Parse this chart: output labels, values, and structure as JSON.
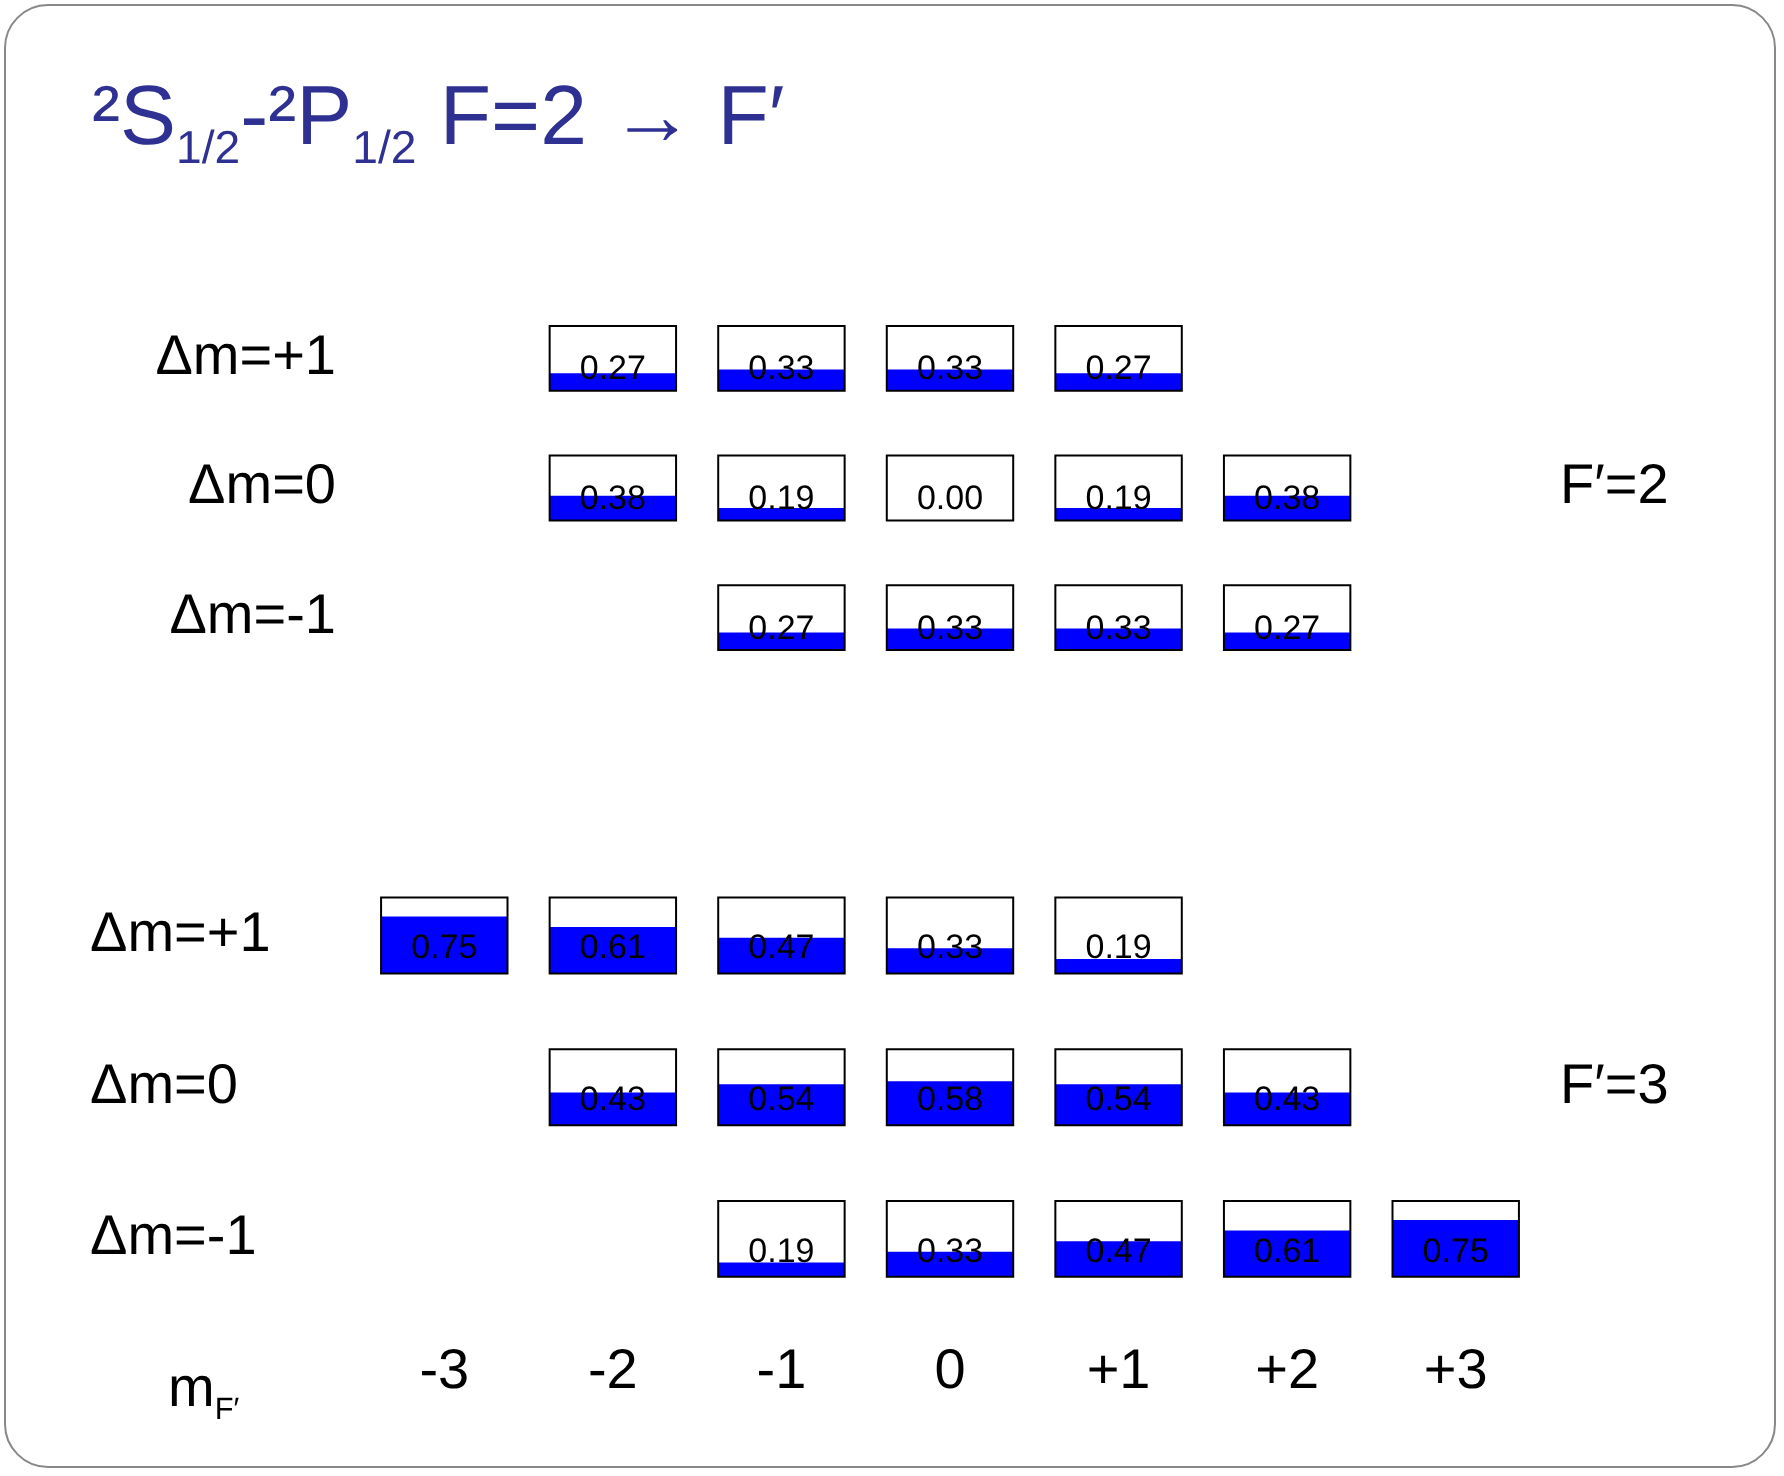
{
  "chart_data": [
    {
      "type": "heatmap",
      "title": "²S$_{1/2}$-²P$_{1/2}$  F=2 → F′",
      "color": "#0000ff",
      "tick_labels": "y",
      "categories": [
        "-3",
        "-2",
        "-1",
        "0",
        "+1",
        "+2",
        "+3"
      ],
      "y_categories": [
        "Δm=+1",
        "Δm=0",
        "Δm=-1"
      ],
      "y2_categories": [
        null,
        "F′=2",
        null
      ],
      "cells": [
        [
          null,
          0.27,
          0.33,
          0.33,
          0.27,
          null,
          null
        ],
        [
          null,
          0.38,
          0.19,
          0,
          0.19,
          0.38,
          null
        ],
        [
          null,
          null,
          0.27,
          0.33,
          0.33,
          0.27,
          null
        ]
      ],
      "cell_labels": [
        [
          null,
          "0.27",
          "0.33",
          "0.33",
          "0.27",
          null,
          null
        ],
        [
          null,
          "0.38",
          "0.19",
          "0.00",
          "0.19",
          "0.38",
          null
        ],
        [
          null,
          null,
          "0.27",
          "0.33",
          "0.33",
          "0.27",
          null
        ]
      ]
    },
    {
      "type": "heatmap",
      "xlabel": "m$_{F′}$",
      "color": "#0000ff",
      "categories": [
        "-3",
        "-2",
        "-1",
        "0",
        "+1",
        "+2",
        "+3"
      ],
      "y_categories": [
        "Δm=+1",
        "Δm=0",
        "Δm=-1"
      ],
      "y2_categories": [
        null,
        "F′=3",
        null
      ],
      "cells": [
        [
          0.75,
          0.61,
          0.47,
          0.33,
          0.19,
          null,
          null
        ],
        [
          null,
          0.43,
          0.54,
          0.58,
          0.54,
          0.43,
          null
        ],
        [
          null,
          null,
          0.19,
          0.33,
          0.47,
          0.61,
          0.75
        ]
      ],
      "cell_labels": [
        [
          "0.75",
          "0.61",
          "0.47",
          "0.33",
          "0.19",
          null,
          null
        ],
        [
          null,
          "0.43",
          "0.54",
          "0.58",
          "0.54",
          "0.43",
          null
        ],
        [
          null,
          null,
          "0.19",
          "0.33",
          "0.47",
          "0.61",
          "0.75"
        ]
      ]
    }
  ]
}
